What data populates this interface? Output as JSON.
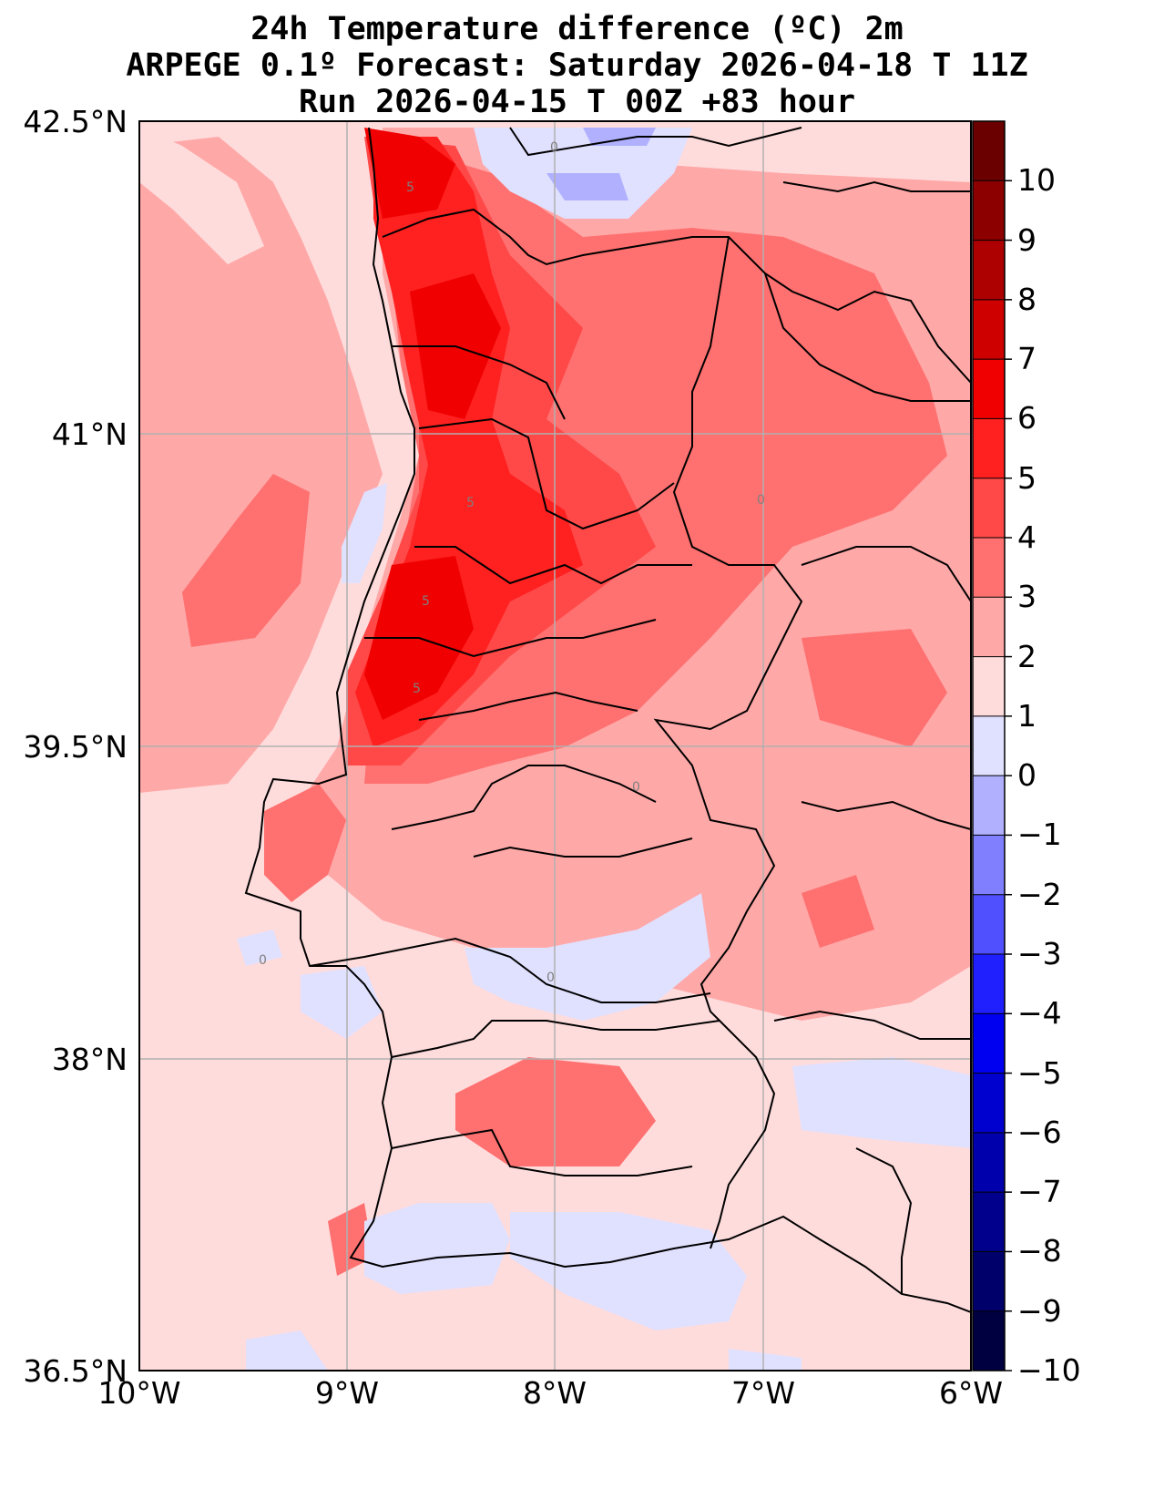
{
  "title": {
    "line1": "24h Temperature difference (ºC) 2m",
    "line2": "ARPEGE 0.1º Forecast: Saturday 2026-04-18 T 11Z",
    "line3": "Run 2026-04-15 T 00Z +83 hour"
  },
  "map": {
    "lat_range": [
      36.5,
      42.5
    ],
    "lon_range": [
      -10,
      -6
    ],
    "y_ticks": [
      {
        "lat": 42.5,
        "label": "42.5°N"
      },
      {
        "lat": 41,
        "label": "41°N"
      },
      {
        "lat": 39.5,
        "label": "39.5°N"
      },
      {
        "lat": 38,
        "label": "38°N"
      },
      {
        "lat": 36.5,
        "label": "36.5°N"
      }
    ],
    "x_ticks": [
      {
        "lon": -10,
        "label": "10°W"
      },
      {
        "lon": -9,
        "label": "9°W"
      },
      {
        "lon": -8,
        "label": "8°W"
      },
      {
        "lon": -7,
        "label": "7°W"
      },
      {
        "lon": -6,
        "label": "6°W"
      }
    ],
    "contour_labels": [
      "5",
      "5",
      "5",
      "5",
      "0",
      "0",
      "0",
      "0",
      "0"
    ]
  },
  "colorbar": {
    "ticks": [
      "10",
      "9",
      "8",
      "7",
      "6",
      "5",
      "4",
      "3",
      "2",
      "1",
      "0",
      "−1",
      "−2",
      "−3",
      "−4",
      "−5",
      "−6",
      "−7",
      "−8",
      "−9",
      "−10"
    ],
    "colors": [
      "#6a0000",
      "#8c0000",
      "#ad0000",
      "#cf0000",
      "#f00000",
      "#ff2020",
      "#ff4848",
      "#ff7070",
      "#ffa8a8",
      "#ffdcdc",
      "#e0e0ff",
      "#b0b0ff",
      "#8080ff",
      "#5050ff",
      "#2020ff",
      "#0000f0",
      "#0000cf",
      "#0000ad",
      "#00008c",
      "#00006a",
      "#000040"
    ]
  },
  "legend_colors": {
    "land_base": "#ffdcdc",
    "ocean_base": "#ffdcdc",
    "grid": "#b0b0b0",
    "border": "#000000"
  }
}
